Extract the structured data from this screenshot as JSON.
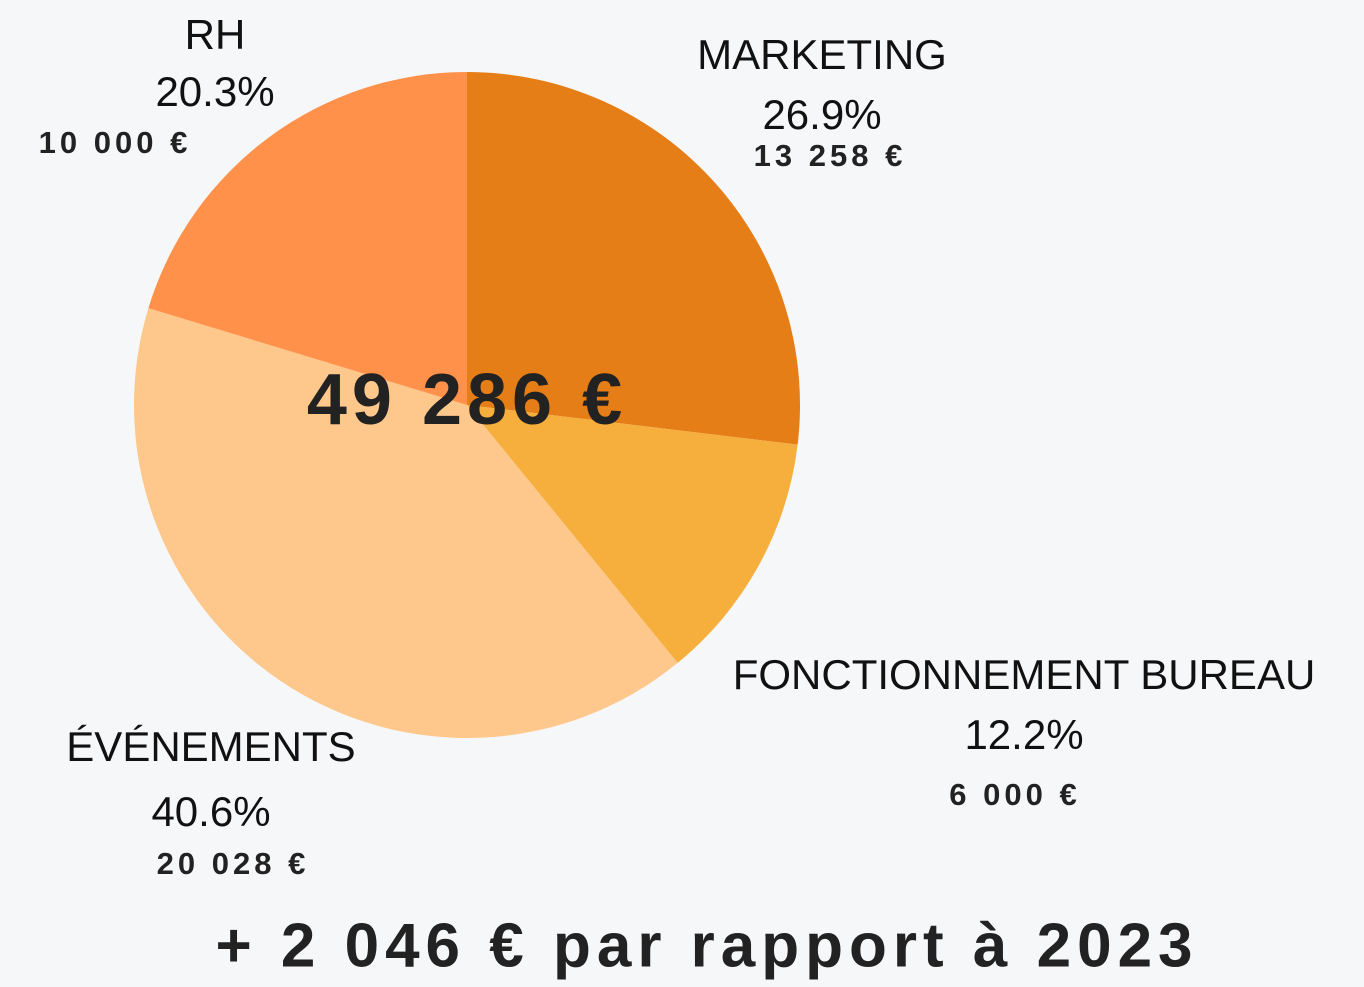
{
  "chart_data": {
    "type": "pie",
    "categories": [
      "MARKETING",
      "FONCTIONNEMENT BUREAU",
      "ÉVÉNEMENTS",
      "RH"
    ],
    "values": [
      26.9,
      12.2,
      40.6,
      20.3
    ],
    "value_labels": [
      "26.9%",
      "12.2%",
      "40.6%",
      "20.3%"
    ],
    "amounts": [
      "13 258 €",
      "6 000 €",
      "20 028 €",
      "10 000 €"
    ],
    "colors": [
      "#e67e17",
      "#f6ae3c",
      "#fec78b",
      "#ff914a"
    ],
    "total": "49 286 €",
    "footer": "+ 2 046 € par rapport à 2023"
  }
}
